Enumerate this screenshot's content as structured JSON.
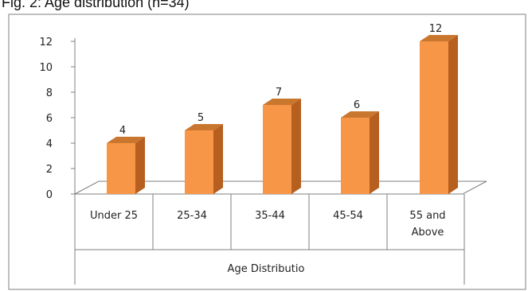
{
  "caption": "Fig. 2: Age distribution (n=34)",
  "colors": {
    "bar_front": "#F79646",
    "bar_side": "#B65F1F",
    "bar_top": "#C9762F",
    "axis": "#7F7F7F",
    "border": "#7F7F7F"
  },
  "chart_data": {
    "type": "bar",
    "style": "3d-column",
    "categories": [
      "Under 25",
      "25-34",
      "35-44",
      "45-54",
      "55 and Above"
    ],
    "values": [
      4,
      5,
      7,
      6,
      12
    ],
    "data_labels": [
      "4",
      "5",
      "7",
      "6",
      "12"
    ],
    "xlabel": "Age Distributio",
    "ylabel": "",
    "ylim": [
      0,
      12
    ],
    "yticks": [
      "0",
      "2",
      "4",
      "6",
      "8",
      "10",
      "12"
    ],
    "grid": false,
    "legend": "none"
  }
}
